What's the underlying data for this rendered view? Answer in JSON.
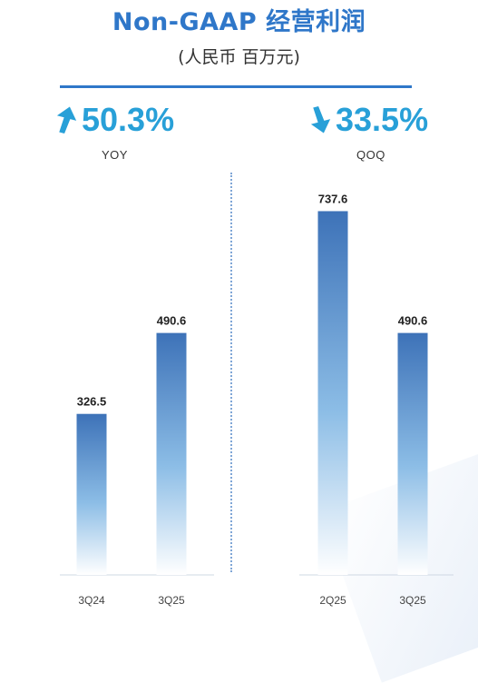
{
  "header": {
    "title": "Non-GAAP  经营利润",
    "subtitle": "(人民币 百万元)"
  },
  "metrics": {
    "yoy": {
      "value": "50.3%",
      "label": "YOY",
      "direction": "up"
    },
    "qoq": {
      "value": "33.5%",
      "label": "QOQ",
      "direction": "down"
    }
  },
  "colors": {
    "title": "#2f77c9",
    "metric": "#28a0d8",
    "bar_top": "#3d72b8",
    "bar_bottom": "#ffffff"
  },
  "chart_data": [
    {
      "type": "bar",
      "title": "",
      "categories": [
        "3Q24",
        "3Q25"
      ],
      "values": [
        326.5,
        490.6
      ],
      "data_labels": [
        "326.5",
        "490.6"
      ],
      "ylim": [
        0,
        800
      ],
      "grid": false
    },
    {
      "type": "bar",
      "title": "",
      "categories": [
        "2Q25",
        "3Q25"
      ],
      "values": [
        737.6,
        490.6
      ],
      "data_labels": [
        "737.6",
        "490.6"
      ],
      "ylim": [
        0,
        800
      ],
      "grid": false
    }
  ]
}
